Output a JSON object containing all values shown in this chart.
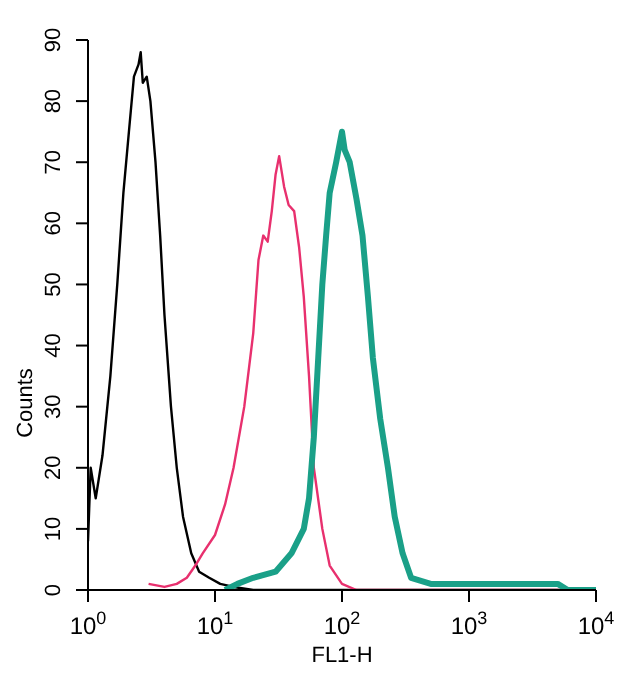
{
  "chart_data": {
    "type": "line",
    "xlabel": "FL1-H",
    "ylabel": "Counts",
    "log": "x",
    "xlim": [
      1,
      10000
    ],
    "xticks": [
      {
        "value": 1,
        "label": "10$^{0}$"
      },
      {
        "value": 10,
        "label": "10$^{1}$"
      },
      {
        "value": 100,
        "label": "10$^{2}$"
      },
      {
        "value": 1000,
        "label": "10$^{3}$"
      },
      {
        "value": 10000,
        "label": "10$^{4}$"
      }
    ],
    "ylim": [
      0,
      90
    ],
    "yticks": [
      0,
      10,
      20,
      30,
      40,
      50,
      60,
      70,
      80,
      90
    ],
    "grid": false,
    "legend": false,
    "marker": "none",
    "line_style": "solid",
    "series": [
      {
        "color": "#000000",
        "x": [
          1,
          1.05,
          1.15,
          1.3,
          1.5,
          1.7,
          1.9,
          2.1,
          2.3,
          2.5,
          2.6,
          2.7,
          2.9,
          3.1,
          3.4,
          3.7,
          4,
          4.5,
          5,
          5.6,
          6.5,
          7.5,
          9,
          11,
          14,
          20,
          10000
        ],
        "values": [
          8,
          20,
          15,
          22,
          35,
          50,
          65,
          75,
          84,
          86,
          88,
          83,
          84,
          80,
          70,
          58,
          45,
          30,
          20,
          12,
          6,
          3,
          2,
          1,
          0.5,
          0,
          0
        ]
      },
      {
        "color": "#e8306e",
        "x": [
          3,
          4,
          5,
          6,
          7,
          8,
          10,
          12,
          14,
          17,
          20,
          22,
          24,
          26,
          28,
          30,
          32,
          35,
          38,
          42,
          46,
          50,
          55,
          60,
          70,
          80,
          100,
          130,
          10000
        ],
        "values": [
          1,
          0.5,
          1,
          2,
          4,
          6,
          9,
          14,
          20,
          30,
          42,
          54,
          58,
          57,
          62,
          68,
          71,
          66,
          63,
          62,
          56,
          48,
          35,
          20,
          10,
          4,
          1,
          0,
          0
        ]
      },
      {
        "color": "#1aa088",
        "x": [
          12,
          15,
          20,
          30,
          40,
          50,
          55,
          60,
          65,
          70,
          75,
          80,
          90,
          100,
          105,
          115,
          130,
          145,
          160,
          175,
          200,
          230,
          260,
          300,
          350,
          500,
          1000,
          3000,
          5000,
          6000,
          10000
        ],
        "values": [
          0,
          1,
          2,
          3,
          6,
          10,
          15,
          25,
          38,
          50,
          58,
          65,
          70,
          75,
          72,
          70,
          64,
          58,
          48,
          38,
          28,
          20,
          12,
          6,
          2,
          1,
          1,
          1,
          1,
          0,
          0
        ]
      }
    ]
  }
}
